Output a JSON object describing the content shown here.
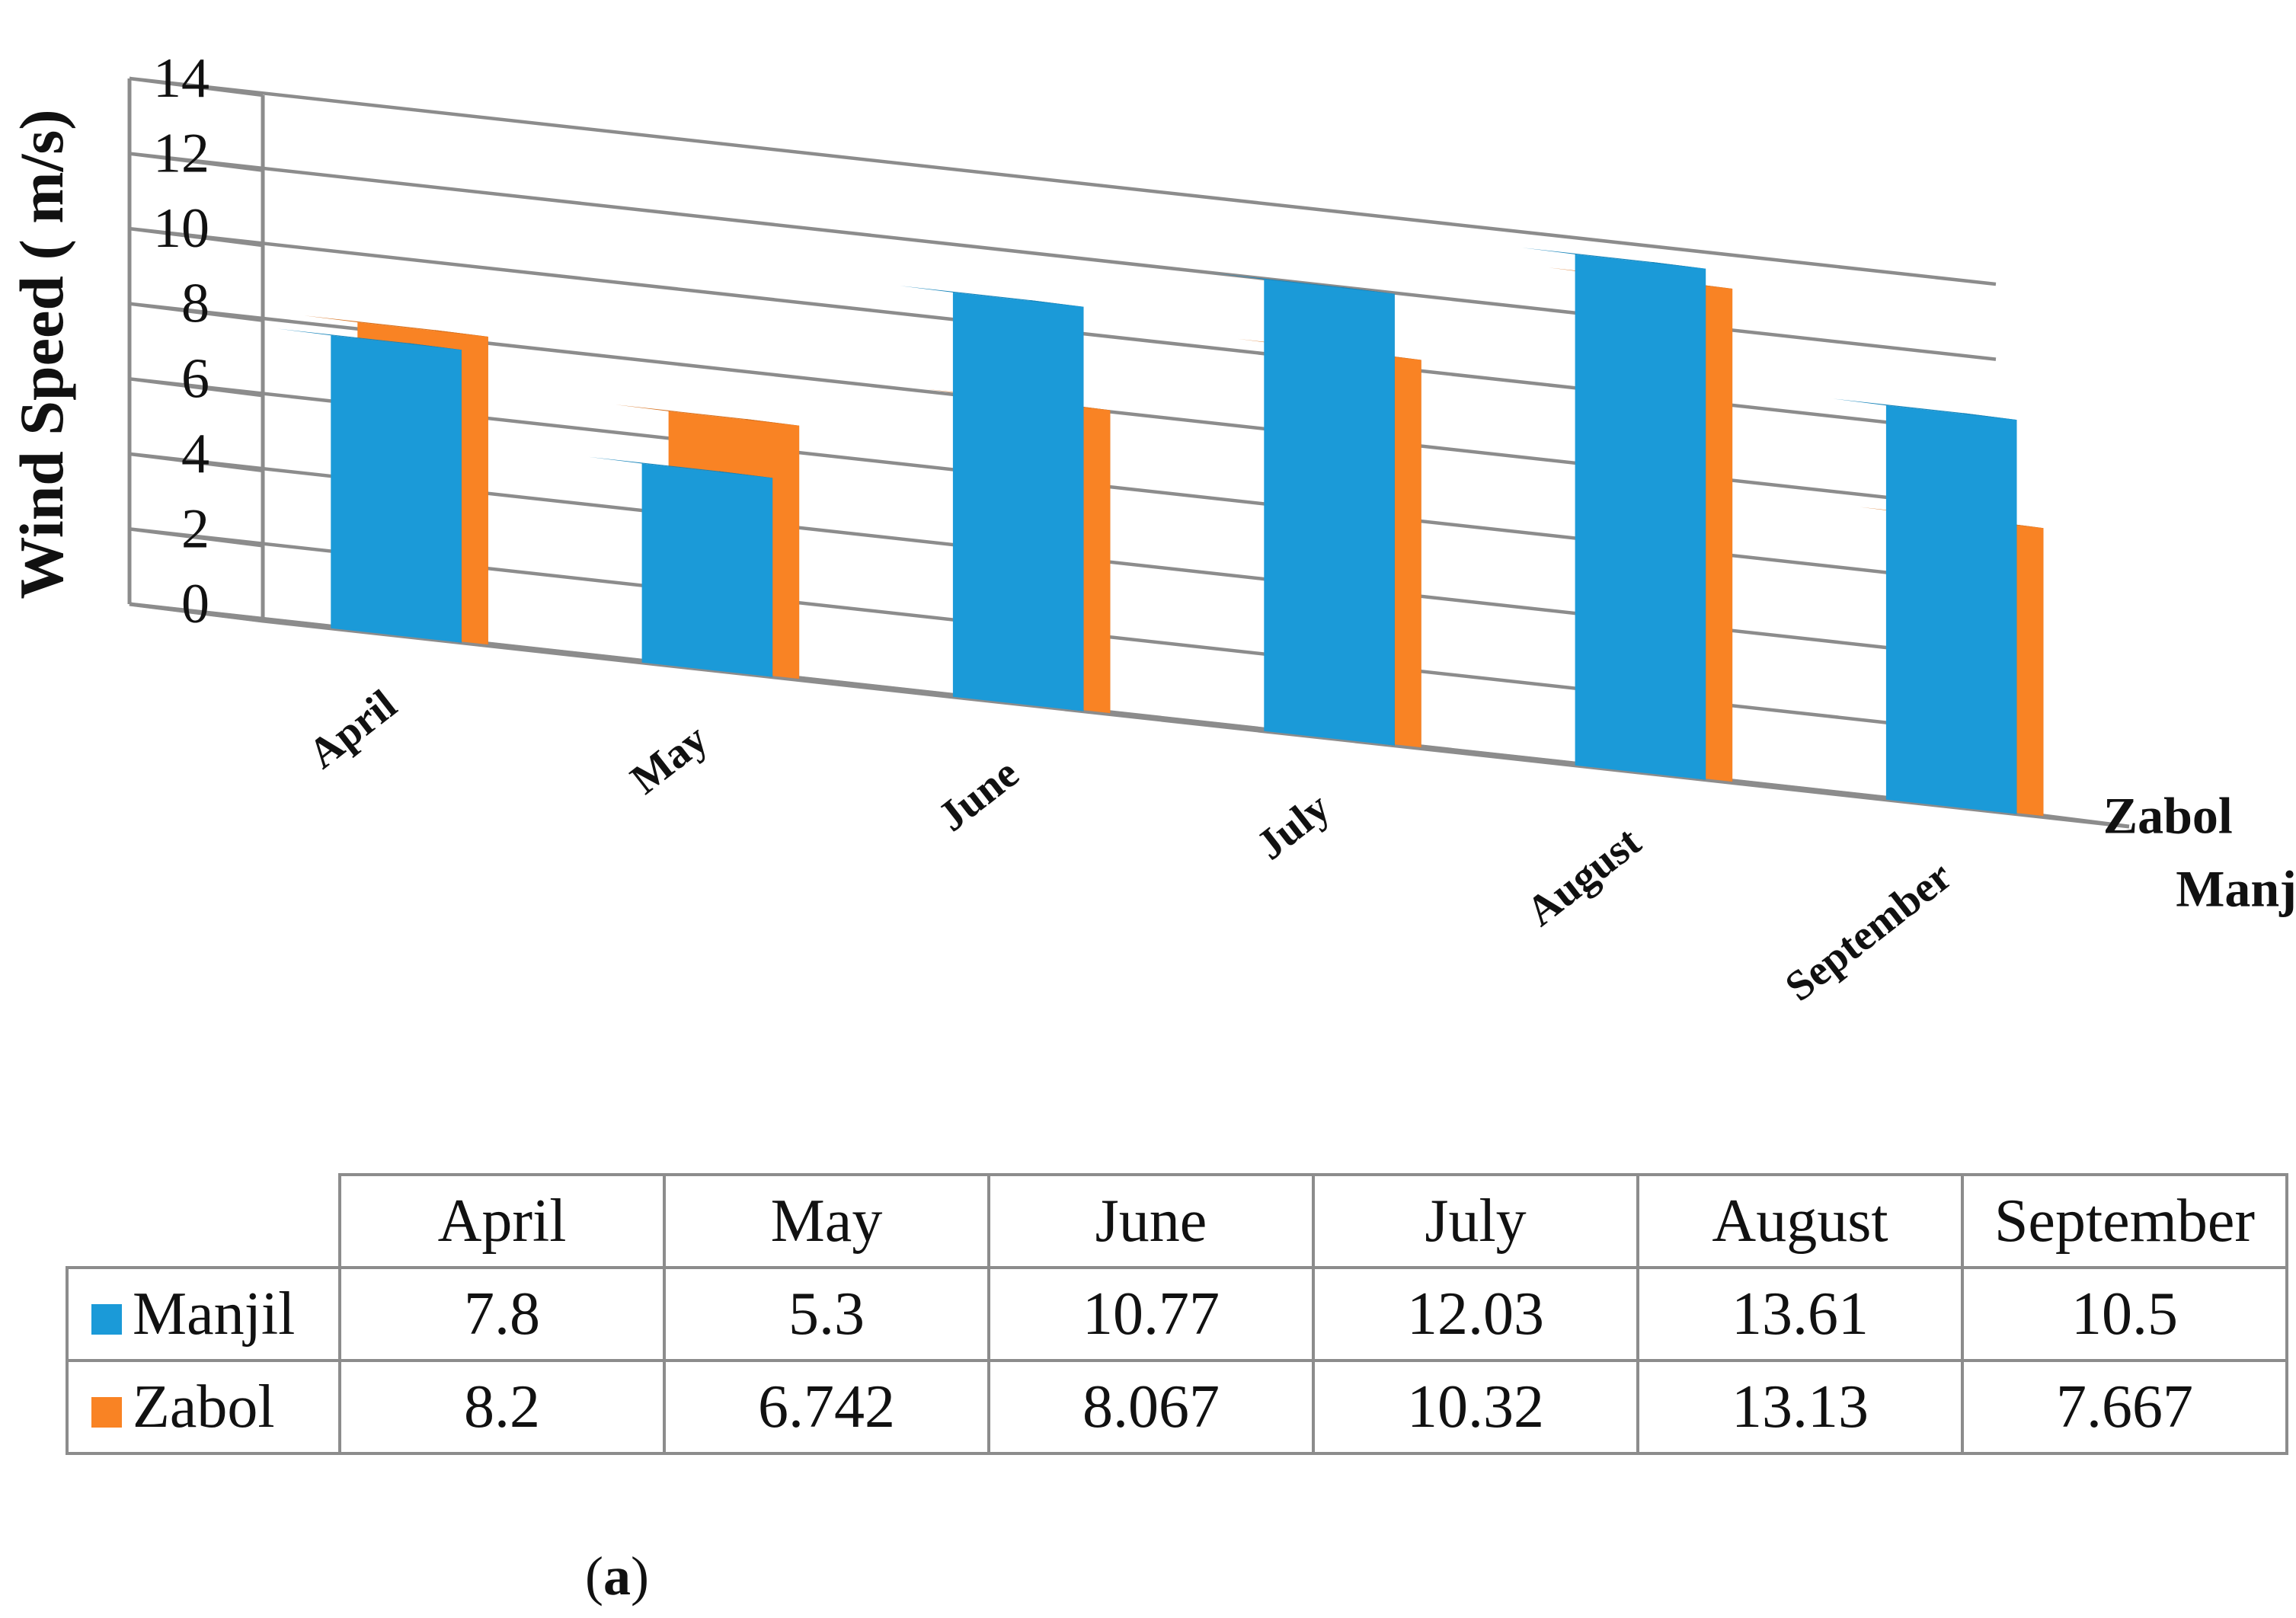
{
  "chart_data": {
    "type": "bar",
    "subtype": "3d-clustered",
    "title": "",
    "xlabel": "",
    "ylabel": "Wind Speed ( m/s)",
    "ylim": [
      0,
      14
    ],
    "yticks": [
      0,
      2,
      4,
      6,
      8,
      10,
      12,
      14
    ],
    "grid": true,
    "categories": [
      "April",
      "May",
      "June",
      "July",
      "August",
      "September"
    ],
    "series": [
      {
        "name": "Manjil",
        "color": "#1b9ad8",
        "values": [
          7.8,
          5.3,
          10.77,
          12.03,
          13.61,
          10.5
        ]
      },
      {
        "name": "Zabol",
        "color": "#f98324",
        "values": [
          8.2,
          6.742,
          8.067,
          10.32,
          13.13,
          7.667
        ]
      }
    ],
    "depth_axis_labels": [
      "Manjil",
      "Zabol"
    ]
  },
  "table": {
    "header": [
      "April",
      "May",
      "June",
      "July",
      "August",
      "September"
    ],
    "rows": [
      {
        "label": "Manjil",
        "color": "#1b9ad8",
        "cells": [
          "7.8",
          "5.3",
          "10.77",
          "12.03",
          "13.61",
          "10.5"
        ]
      },
      {
        "label": "Zabol",
        "color": "#f98324",
        "cells": [
          "8.2",
          "6.742",
          "8.067",
          "10.32",
          "13.13",
          "7.667"
        ]
      }
    ]
  },
  "caption": {
    "open": "(",
    "letter": "a",
    "close": ")"
  }
}
